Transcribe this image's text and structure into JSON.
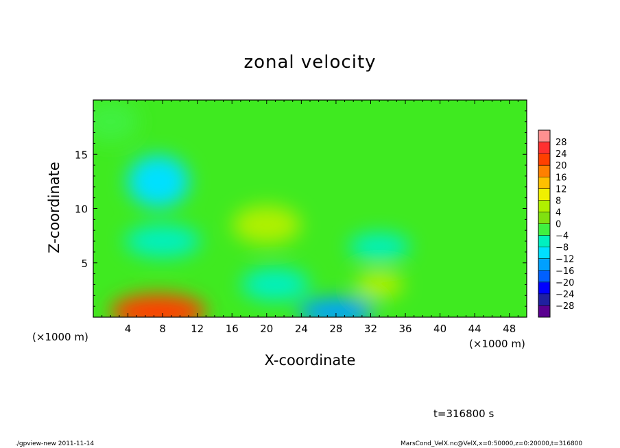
{
  "chart_data": {
    "type": "heatmap",
    "title": "zonal velocity",
    "xlabel": "X-coordinate",
    "ylabel": "Z-coordinate",
    "x_unit": "(×1000 m)",
    "y_unit": "(×1000 m)",
    "xlim": [
      0,
      50
    ],
    "ylim": [
      0,
      20
    ],
    "x_ticks": [
      4,
      8,
      12,
      16,
      20,
      24,
      28,
      32,
      36,
      40,
      44,
      48
    ],
    "y_ticks": [
      5,
      10,
      15
    ],
    "colorbar_levels": [
      -28,
      -24,
      -20,
      -16,
      -12,
      -8,
      -4,
      0,
      4,
      8,
      12,
      16,
      20,
      24,
      28
    ],
    "colorbar_colors": [
      "#5a0090",
      "#2020a0",
      "#0000ff",
      "#0060ff",
      "#00a0ff",
      "#00e0ff",
      "#00f0c0",
      "#40f040",
      "#80e010",
      "#b0f000",
      "#f0f000",
      "#ffc000",
      "#ff8000",
      "#ff4000",
      "#ff3030",
      "#ff9090"
    ],
    "colorbar_position": "right",
    "features": [
      {
        "x": 7.5,
        "z": 0.5,
        "value": 22
      },
      {
        "x": 28,
        "z": 0.5,
        "value": -14
      },
      {
        "x": 7.5,
        "z": 12.5,
        "value": -10
      },
      {
        "x": 8,
        "z": 7,
        "value": -8
      },
      {
        "x": 33,
        "z": 6.5,
        "value": -7
      },
      {
        "x": 21,
        "z": 3,
        "value": -6
      },
      {
        "x": 20,
        "z": 8.5,
        "value": 6
      },
      {
        "x": 33,
        "z": 3,
        "value": 6
      },
      {
        "x": 2,
        "z": 18,
        "value": -4
      }
    ]
  },
  "annotations": {
    "time": "t=316800 s",
    "footer_left": "./gpview-new  2011-11-14",
    "footer_right": "MarsCond_VelX.nc@VelX,x=0:50000,z=0:20000,t=316800"
  }
}
